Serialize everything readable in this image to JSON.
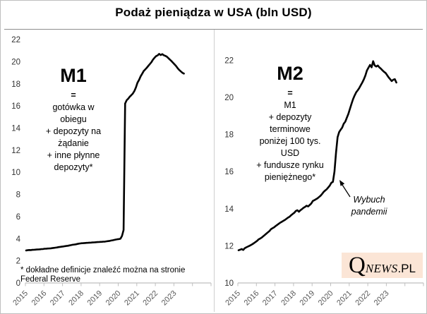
{
  "title": "Podaż pieniądza w USA (bln USD)",
  "footnote": {
    "lines": [
      "* dokładne definicje znaleźć można na stronie",
      "Federal Reserve"
    ]
  },
  "logo": {
    "q": "Q",
    "news": "NEWS",
    "pl": ".PL",
    "bg_color": "#FBE5D6",
    "text_color": "#000000"
  },
  "colors": {
    "line": "#000000",
    "axis": "#bfbfbf",
    "x_tick_label": "#595959",
    "y_tick_label": "#333333",
    "title_rule": "#8e8e8e",
    "border": "#bfbfbf"
  },
  "chart_data": [
    {
      "id": "m1",
      "type": "line",
      "title": "M1",
      "definition_lines": [
        "=",
        "gotówka w",
        "obiegu",
        "+ depozyty na",
        "żądanie",
        "+ inne płynne",
        "depozyty*"
      ],
      "x_start": 2015.0,
      "x_step": "monthly",
      "x_tick_labels": [
        "2015",
        "2016",
        "2017",
        "2018",
        "2019",
        "2020",
        "2021",
        "2022",
        "2023"
      ],
      "ylim": [
        0,
        22
      ],
      "y_tick_step": 2,
      "grid": false,
      "legend": "none",
      "values": [
        2.94,
        2.96,
        2.98,
        2.97,
        2.99,
        3.0,
        3.01,
        3.02,
        3.03,
        3.04,
        3.06,
        3.07,
        3.09,
        3.1,
        3.11,
        3.12,
        3.13,
        3.15,
        3.17,
        3.19,
        3.21,
        3.24,
        3.26,
        3.28,
        3.3,
        3.32,
        3.34,
        3.36,
        3.39,
        3.42,
        3.45,
        3.47,
        3.49,
        3.52,
        3.55,
        3.57,
        3.59,
        3.6,
        3.61,
        3.62,
        3.63,
        3.64,
        3.65,
        3.66,
        3.67,
        3.68,
        3.69,
        3.7,
        3.71,
        3.72,
        3.73,
        3.74,
        3.76,
        3.78,
        3.8,
        3.83,
        3.86,
        3.89,
        3.92,
        3.95,
        3.97,
        4.0,
        4.26,
        4.79,
        16.22,
        16.52,
        16.66,
        16.83,
        16.97,
        17.12,
        17.35,
        17.67,
        18.1,
        18.35,
        18.67,
        18.9,
        19.15,
        19.3,
        19.45,
        19.62,
        19.78,
        19.95,
        20.18,
        20.35,
        20.5,
        20.57,
        20.7,
        20.6,
        20.68,
        20.58,
        20.52,
        20.45,
        20.32,
        20.18,
        20.05,
        19.9,
        19.75,
        19.6,
        19.4,
        19.25,
        19.12,
        19.0,
        18.92
      ]
    },
    {
      "id": "m2",
      "type": "line",
      "title": "M2",
      "definition_lines": [
        "=",
        "M1",
        "+ depozyty",
        "terminowe",
        "poniżej 100 tys.",
        "USD",
        "+ fundusze rynku",
        "pieniężnego*"
      ],
      "annotation": {
        "lines": [
          "Wybuch",
          "pandemii"
        ],
        "points_to": "2020-03"
      },
      "x_start": 2015.0,
      "x_step": "monthly",
      "x_tick_labels": [
        "2015",
        "2016",
        "2017",
        "2018",
        "2019",
        "2020",
        "2021",
        "2022",
        "2023"
      ],
      "ylim": [
        10,
        22
      ],
      "y_tick_step": 2,
      "grid": false,
      "legend": "none",
      "values": [
        11.76,
        11.79,
        11.83,
        11.78,
        11.87,
        11.92,
        11.96,
        12.0,
        12.04,
        12.09,
        12.15,
        12.21,
        12.27,
        12.35,
        12.39,
        12.45,
        12.52,
        12.59,
        12.66,
        12.73,
        12.8,
        12.9,
        12.95,
        13.0,
        13.07,
        13.13,
        13.19,
        13.25,
        13.3,
        13.35,
        13.4,
        13.46,
        13.52,
        13.57,
        13.65,
        13.72,
        13.78,
        13.88,
        13.92,
        13.84,
        13.92,
        13.98,
        14.05,
        14.1,
        14.16,
        14.12,
        14.2,
        14.28,
        14.42,
        14.46,
        14.51,
        14.56,
        14.63,
        14.7,
        14.8,
        14.9,
        14.98,
        15.05,
        15.15,
        15.25,
        15.4,
        15.45,
        16.0,
        17.02,
        17.85,
        18.13,
        18.26,
        18.37,
        18.58,
        18.69,
        18.9,
        19.11,
        19.38,
        19.65,
        19.9,
        20.1,
        20.27,
        20.38,
        20.5,
        20.65,
        20.8,
        20.97,
        21.18,
        21.45,
        21.6,
        21.75,
        21.62,
        21.95,
        21.72,
        21.66,
        21.72,
        21.62,
        21.55,
        21.46,
        21.38,
        21.32,
        21.2,
        21.08,
        20.98,
        20.88,
        20.95,
        20.98,
        20.8
      ]
    }
  ]
}
